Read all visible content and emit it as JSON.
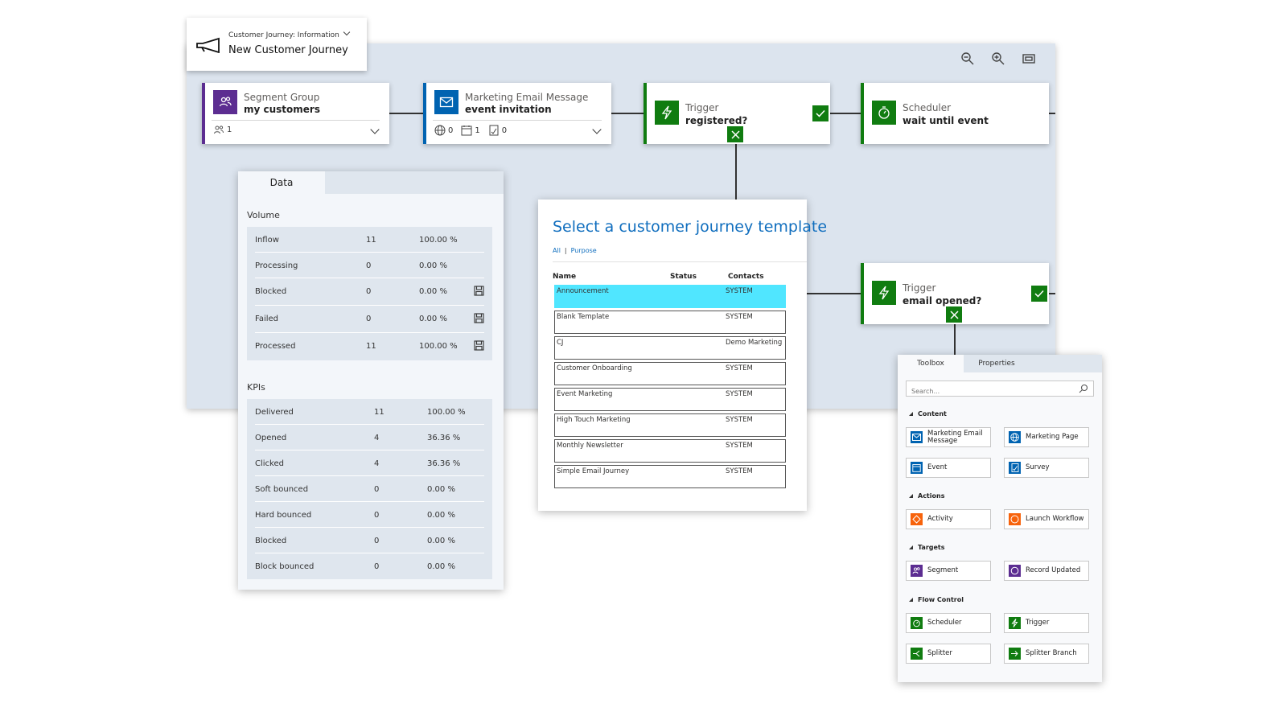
{
  "header": {
    "breadcrumb": "Customer Journey: Information",
    "title": "New Customer Journey"
  },
  "canvas": {
    "zoom_tools": [
      "zoom-out-icon",
      "zoom-in-icon",
      "fit-to-screen-icon"
    ]
  },
  "tiles": {
    "segment": {
      "label": "Segment Group",
      "value": "my customers",
      "count": "1",
      "color": "#5c2d91"
    },
    "email": {
      "label": "Marketing Email Message",
      "value": "event invitation",
      "stats": [
        "0",
        "1",
        "0"
      ],
      "color": "#0063b1"
    },
    "trigger1": {
      "label": "Trigger",
      "value": "registered?",
      "color": "#107c10"
    },
    "scheduler": {
      "label": "Scheduler",
      "value": "wait until event",
      "color": "#107c10"
    },
    "trigger2": {
      "label": "Trigger",
      "value": "email opened?",
      "color": "#107c10"
    }
  },
  "data_panel": {
    "tab": "Data",
    "volume_title": "Volume",
    "volume": [
      {
        "name": "Inflow",
        "count": "11",
        "pct": "100.00 %",
        "save": false
      },
      {
        "name": "Processing",
        "count": "0",
        "pct": "0.00 %",
        "save": false
      },
      {
        "name": "Blocked",
        "count": "0",
        "pct": "0.00 %",
        "save": true
      },
      {
        "name": "Failed",
        "count": "0",
        "pct": "0.00 %",
        "save": true
      },
      {
        "name": "Processed",
        "count": "11",
        "pct": "100.00 %",
        "save": true
      }
    ],
    "kpi_title": "KPIs",
    "kpis": [
      {
        "name": "Delivered",
        "count": "11",
        "pct": "100.00 %"
      },
      {
        "name": "Opened",
        "count": "4",
        "pct": "36.36 %"
      },
      {
        "name": "Clicked",
        "count": "4",
        "pct": "36.36 %"
      },
      {
        "name": "Soft bounced",
        "count": "0",
        "pct": "0.00 %"
      },
      {
        "name": "Hard bounced",
        "count": "0",
        "pct": "0.00 %"
      },
      {
        "name": "Blocked",
        "count": "0",
        "pct": "0.00 %"
      },
      {
        "name": "Block bounced",
        "count": "0",
        "pct": "0.00 %"
      }
    ]
  },
  "template_panel": {
    "title": "Select a customer journey template",
    "filter_all": "All",
    "filter_separator": "|",
    "filter_purpose": "Purpose",
    "columns": {
      "name": "Name",
      "status": "Status",
      "contacts": "Contacts"
    },
    "rows": [
      {
        "name": "Announcement",
        "contacts": "SYSTEM",
        "selected": true
      },
      {
        "name": "Blank Template",
        "contacts": "SYSTEM"
      },
      {
        "name": "CJ",
        "contacts": "Demo Marketing"
      },
      {
        "name": "Customer Onboarding",
        "contacts": "SYSTEM"
      },
      {
        "name": "Event Marketing",
        "contacts": "SYSTEM"
      },
      {
        "name": "High Touch Marketing",
        "contacts": "SYSTEM"
      },
      {
        "name": "Monthly Newsletter",
        "contacts": "SYSTEM"
      },
      {
        "name": "Simple Email Journey",
        "contacts": "SYSTEM"
      }
    ],
    "highlight_color": "#50e6ff"
  },
  "toolbox": {
    "tabs": [
      "Toolbox",
      "Properties"
    ],
    "search_placeholder": "Search...",
    "sections": {
      "content": {
        "title": "Content",
        "items": [
          {
            "label": "Marketing Email Message",
            "icon": "email-icon",
            "color": "#0063b1"
          },
          {
            "label": "Marketing Page",
            "icon": "globe-icon",
            "color": "#0063b1"
          },
          {
            "label": "Event",
            "icon": "calendar-icon",
            "color": "#0063b1"
          },
          {
            "label": "Survey",
            "icon": "survey-icon",
            "color": "#0063b1"
          }
        ]
      },
      "actions": {
        "title": "Actions",
        "items": [
          {
            "label": "Activity",
            "icon": "activity-icon",
            "color": "#f7630c"
          },
          {
            "label": "Launch Workflow",
            "icon": "workflow-icon",
            "color": "#f7630c"
          }
        ]
      },
      "targets": {
        "title": "Targets",
        "items": [
          {
            "label": "Segment",
            "icon": "segment-icon",
            "color": "#5c2d91"
          },
          {
            "label": "Record Updated",
            "icon": "record-icon",
            "color": "#5c2d91"
          }
        ]
      },
      "flow": {
        "title": "Flow Control",
        "items": [
          {
            "label": "Scheduler",
            "icon": "timer-icon",
            "color": "#107c10"
          },
          {
            "label": "Trigger",
            "icon": "lightning-icon",
            "color": "#107c10"
          },
          {
            "label": "Splitter",
            "icon": "splitter-icon",
            "color": "#107c10"
          },
          {
            "label": "Splitter Branch",
            "icon": "branch-icon",
            "color": "#107c10"
          }
        ]
      }
    }
  }
}
